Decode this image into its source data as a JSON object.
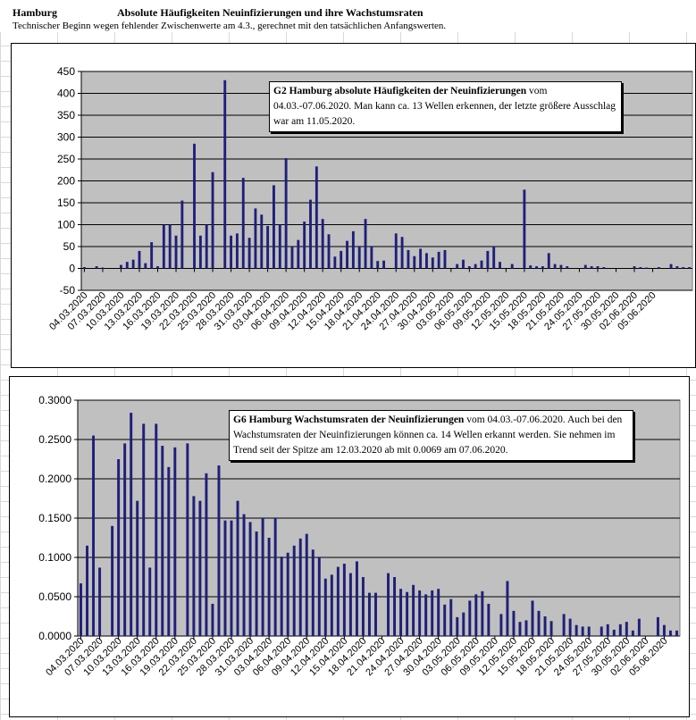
{
  "header": {
    "city": "Hamburg",
    "title": "Absolute Häufigkeiten Neuinfizierungen und ihre Wachstumsraten",
    "note": "Technischer Beginn wegen fehlender Zwischenwerte am 4.3., gerechnet mit den tatsächlichen Anfangswerten."
  },
  "colors": {
    "plot_bg": "#c0c0c0",
    "bar": "#1f1f7a",
    "grid": "#000000"
  },
  "chart_data": [
    {
      "type": "bar",
      "annotation_bold": "G2 Hamburg absolute Häufigkeiten der Neuinfizierungen",
      "annotation_text": "vom 04.03.-07.06.2020. Man kann ca. 13 Wellen erkennen, der letzte größere Ausschlag war am 11.05.2020.",
      "ylim": [
        -50,
        450
      ],
      "yticks": [
        -50,
        0,
        50,
        100,
        150,
        200,
        250,
        300,
        350,
        400,
        450
      ],
      "ytick_labels": [
        "-50",
        "0",
        "50",
        "100",
        "150",
        "200",
        "250",
        "300",
        "350",
        "400",
        "450"
      ],
      "xtick_labels": [
        "04.03.2020",
        "07.03.2020",
        "10.03.2020",
        "13.03.2020",
        "16.03.2020",
        "19.03.2020",
        "22.03.2020",
        "25.03.2020",
        "28.03.2020",
        "31.03.2020",
        "03.04.2020",
        "06.04.2020",
        "09.04.2020",
        "12.04.2020",
        "15.04.2020",
        "18.04.2020",
        "21.04.2020",
        "24.04.2020",
        "27.04.2020",
        "30.04.2020",
        "03.05.2020",
        "06.05.2020",
        "09.05.2020",
        "12.05.2020",
        "15.05.2020",
        "18.05.2020",
        "21.05.2020",
        "24.05.2020",
        "27.05.2020",
        "30.05.2020",
        "02.06.2020",
        "05.06.2020"
      ],
      "values": [
        3,
        0,
        5,
        2,
        0,
        0,
        8,
        15,
        20,
        40,
        12,
        60,
        5,
        100,
        100,
        75,
        155,
        0,
        285,
        75,
        100,
        220,
        0,
        430,
        75,
        80,
        207,
        70,
        137,
        123,
        97,
        190,
        100,
        252,
        50,
        65,
        107,
        157,
        233,
        113,
        78,
        27,
        40,
        63,
        85,
        50,
        113,
        50,
        17,
        18,
        0,
        80,
        72,
        42,
        28,
        45,
        35,
        25,
        38,
        42,
        0,
        10,
        20,
        5,
        10,
        18,
        40,
        50,
        15,
        0,
        10,
        0,
        180,
        7,
        5,
        5,
        35,
        10,
        8,
        5,
        0,
        0,
        8,
        5,
        5,
        3,
        0,
        0,
        0,
        0,
        5,
        3,
        2,
        0,
        3,
        0,
        10,
        5,
        3,
        3
      ]
    },
    {
      "type": "bar",
      "annotation_bold": "G6 Hamburg Wachstumsraten der Neuinfizierungen",
      "annotation_text": "vom 04.03.-07.06.2020. Auch bei den Wachstumsraten der Neuinfizierungen können ca. 14 Wellen erkannt werden. Sie nehmen im Trend seit der Spitze am 12.03.2020 ab mit 0.0069 am 07.06.2020.",
      "ylim": [
        0,
        0.3
      ],
      "yticks": [
        0,
        0.05,
        0.1,
        0.15,
        0.2,
        0.25,
        0.3
      ],
      "ytick_labels": [
        "0.0000",
        "0.0500",
        "0.1000",
        "0.1500",
        "0.2000",
        "0.2500",
        "0.3000"
      ],
      "xtick_labels": [
        "04.03.2020",
        "07.03.2020",
        "10.03.2020",
        "13.03.2020",
        "16.03.2020",
        "19.03.2020",
        "22.03.2020",
        "25.03.2020",
        "28.03.2020",
        "31.03.2020",
        "03.04.2020",
        "06.04.2020",
        "09.04.2020",
        "12.04.2020",
        "15.04.2020",
        "18.04.2020",
        "21.04.2020",
        "24.04.2020",
        "27.04.2020",
        "30.04.2020",
        "03.05.2020",
        "06.05.2020",
        "09.05.2020",
        "12.05.2020",
        "15.05.2020",
        "18.05.2020",
        "21.05.2020",
        "24.05.2020",
        "27.05.2020",
        "30.05.2020",
        "02.06.2020",
        "05.06.2020"
      ],
      "values": [
        0.067,
        0.115,
        0.255,
        0.087,
        0,
        0.14,
        0.225,
        0.245,
        0.284,
        0.172,
        0.27,
        0.087,
        0.27,
        0.242,
        0.215,
        0.24,
        0,
        0.245,
        0.178,
        0.172,
        0.207,
        0.041,
        0.217,
        0.147,
        0.147,
        0.172,
        0.155,
        0.145,
        0.133,
        0.15,
        0.125,
        0.15,
        0.101,
        0.106,
        0.115,
        0.124,
        0.13,
        0.11,
        0.1,
        0.073,
        0.078,
        0.088,
        0.092,
        0.08,
        0.095,
        0.075,
        0.055,
        0.055,
        0,
        0.08,
        0.075,
        0.06,
        0.056,
        0.065,
        0.058,
        0.053,
        0.058,
        0.06,
        0.04,
        0.047,
        0.024,
        0.03,
        0.045,
        0.053,
        0.057,
        0.041,
        0,
        0.028,
        0.07,
        0.032,
        0.018,
        0.02,
        0.045,
        0.032,
        0.025,
        0.019,
        0,
        0.028,
        0.022,
        0.014,
        0.012,
        0.012,
        0,
        0.012,
        0.015,
        0.008,
        0.015,
        0.018,
        0.007,
        0.022,
        0,
        0,
        0.024,
        0.014,
        0.007,
        0.007
      ]
    }
  ]
}
